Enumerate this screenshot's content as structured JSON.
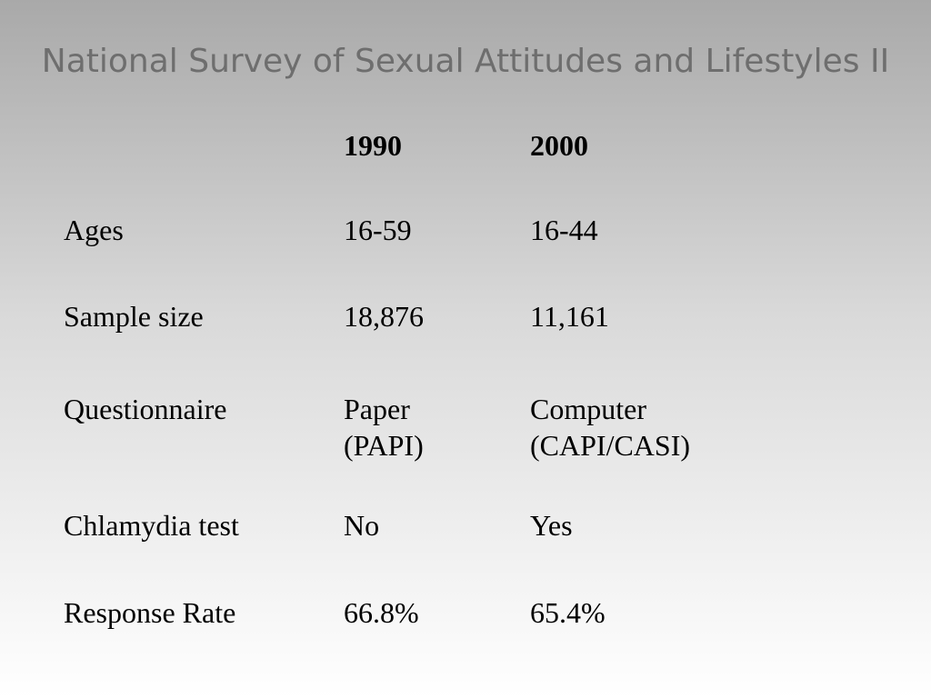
{
  "slide": {
    "title": "National Survey of Sexual Attitudes and Lifestyles II"
  },
  "table": {
    "headers": [
      "",
      "1990",
      "2000"
    ],
    "rows": [
      {
        "label": "Ages",
        "v1990": [
          "16-59"
        ],
        "v2000": [
          "16-44"
        ]
      },
      {
        "label": "Sample size",
        "v1990": [
          "18,876"
        ],
        "v2000": [
          "11,161"
        ]
      },
      {
        "label": "Questionnaire",
        "v1990": [
          "Paper",
          "(PAPI)"
        ],
        "v2000": [
          "Computer",
          "(CAPI/CASI)"
        ]
      },
      {
        "label": "Chlamydia test",
        "v1990": [
          "No"
        ],
        "v2000": [
          "Yes"
        ]
      },
      {
        "label": "Response Rate",
        "v1990": [
          "66.8%"
        ],
        "v2000": [
          "65.4%"
        ]
      }
    ]
  }
}
